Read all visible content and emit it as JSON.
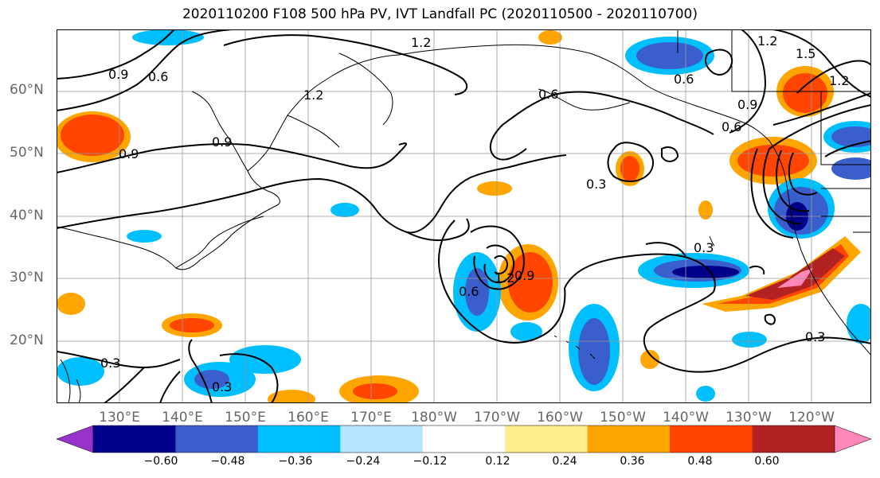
{
  "title": "2020110200 F108 500 hPa PV, IVT Landfall PC (2020110500 - 2020110700)",
  "axes": {
    "lat_labels": [
      "60°N",
      "50°N",
      "40°N",
      "30°N",
      "20°N"
    ],
    "lon_labels": [
      "130°E",
      "140°E",
      "150°E",
      "160°E",
      "170°E",
      "180°W",
      "170°W",
      "160°W",
      "150°W",
      "140°W",
      "130°W",
      "120°W"
    ]
  },
  "contour_labels": [
    "1.2",
    "0.9",
    "0.6",
    "0.6",
    "1.2",
    "0.9",
    "0.9",
    "0.6",
    "0.6",
    "0.3",
    "0.9",
    "0.3",
    "1.2",
    "0.9",
    "0.6",
    "0.3",
    "0.3",
    "0.3",
    "1.2",
    "1.5",
    "1.2"
  ],
  "colorbar": {
    "ticks": [
      "−0.60",
      "−0.48",
      "−0.36",
      "−0.24",
      "−0.12",
      "0.12",
      "0.24",
      "0.36",
      "0.48",
      "0.60"
    ],
    "colors": [
      "#9932cc",
      "#00008b",
      "#3a5fcd",
      "#00bfff",
      "#b3e5ff",
      "#ffffff",
      "#ffec8b",
      "#ffa500",
      "#ff4500",
      "#b22222",
      "#ff88b8"
    ]
  }
}
